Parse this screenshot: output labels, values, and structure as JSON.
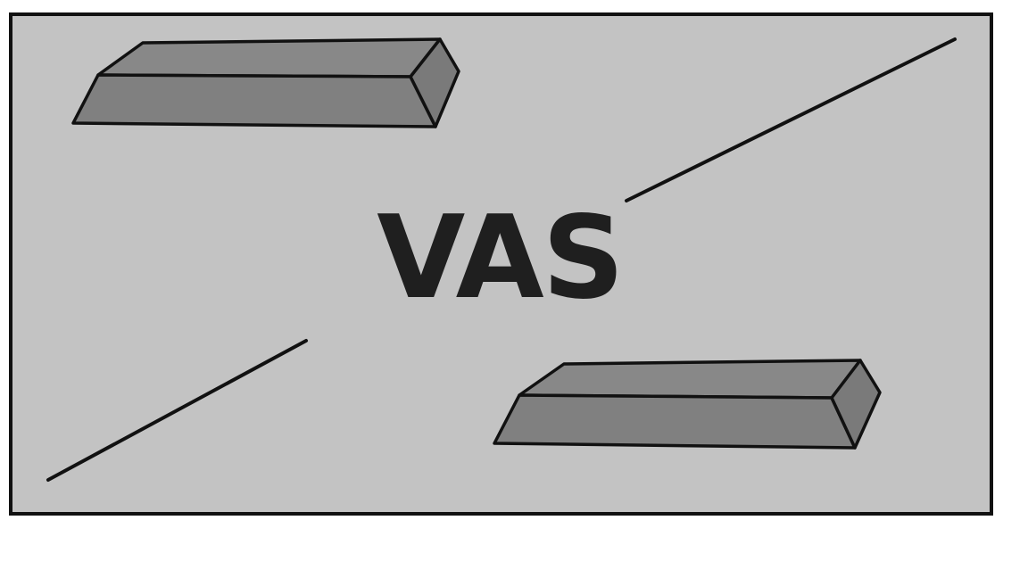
{
  "label": "VAS",
  "colors": {
    "panel_fill": "#c3c3c3",
    "panel_border": "#111111",
    "bar_fill": "#808080",
    "bar_top": "#888888",
    "bar_end": "#7a7a7a",
    "line": "#111111",
    "text": "#1f1f1f",
    "background": "#ffffff"
  },
  "shapes": {
    "bars": 2,
    "diagonal_lines": 2
  }
}
